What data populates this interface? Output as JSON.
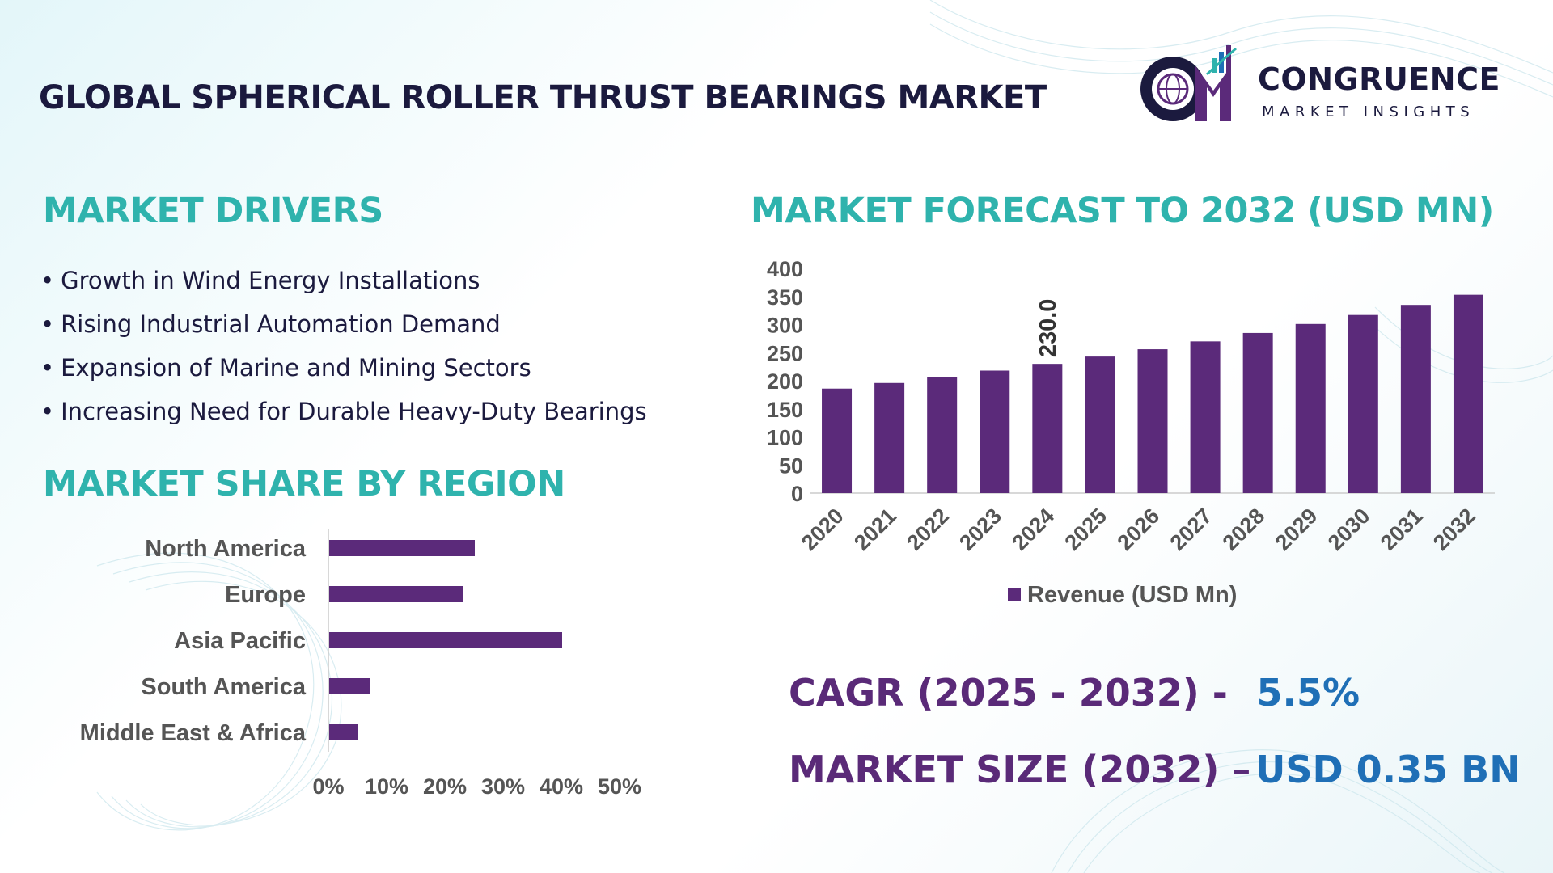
{
  "title": "GLOBAL SPHERICAL ROLLER THRUST BEARINGS MARKET",
  "logo": {
    "initials": "CM",
    "name": "CONGRUENCE",
    "tagline": "MARKET INSIGHTS"
  },
  "drivers": {
    "title": "MARKET DRIVERS",
    "bullet": "•",
    "items": [
      "Growth in Wind Energy Installations",
      "Rising Industrial Automation Demand",
      "Expansion of Marine and Mining Sectors",
      "Increasing Need for Durable Heavy-Duty Bearings"
    ]
  },
  "region_section": {
    "title": "MARKET SHARE BY REGION"
  },
  "forecast_section": {
    "title": "MARKET FORECAST TO 2032 (USD MN)"
  },
  "stats": {
    "cagr_label": "CAGR (2025 - 2032) -",
    "cagr_value": "5.5%",
    "size_label": "MARKET SIZE (2032) –",
    "size_value": "USD 0.35 BN"
  },
  "colors": {
    "bar": "#5b2a7a",
    "section_title": "#2fb3ad",
    "title": "#1b1a3e",
    "stat_label": "#5a2a78",
    "stat_value": "#1f6fb6"
  },
  "chart_data": [
    {
      "type": "bar",
      "orientation": "horizontal",
      "categories": [
        "North America",
        "Europe",
        "Asia Pacific",
        "South America",
        "Middle East & Africa"
      ],
      "values": [
        25,
        23,
        40,
        7,
        5
      ],
      "xlim": [
        0,
        50
      ],
      "xticks": [
        "0%",
        "10%",
        "20%",
        "30%",
        "40%",
        "50%"
      ],
      "grid": false
    },
    {
      "type": "bar",
      "categories": [
        "2020",
        "2021",
        "2022",
        "2023",
        "2024",
        "2025",
        "2026",
        "2027",
        "2028",
        "2029",
        "2030",
        "2031",
        "2032"
      ],
      "series": [
        {
          "name": "Revenue (USD Mn)",
          "values": [
            186,
            196,
            207,
            218,
            230,
            243,
            256,
            270,
            285,
            301,
            317,
            335,
            353
          ]
        }
      ],
      "data_labels": [
        {
          "index": 4,
          "text": "230.0"
        }
      ],
      "ylim": [
        0,
        400
      ],
      "yticks": [
        "0",
        "50",
        "100",
        "150",
        "200",
        "250",
        "300",
        "350",
        "400"
      ],
      "legend": "bottom",
      "grid": false
    }
  ]
}
